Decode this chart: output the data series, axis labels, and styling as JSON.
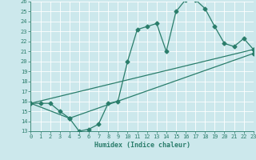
{
  "title": "",
  "xlabel": "Humidex (Indice chaleur)",
  "xlim": [
    0,
    23
  ],
  "ylim": [
    13,
    26
  ],
  "xticks": [
    0,
    1,
    2,
    3,
    4,
    5,
    6,
    7,
    8,
    9,
    10,
    11,
    12,
    13,
    14,
    15,
    16,
    17,
    18,
    19,
    20,
    21,
    22,
    23
  ],
  "yticks": [
    13,
    14,
    15,
    16,
    17,
    18,
    19,
    20,
    21,
    22,
    23,
    24,
    25,
    26
  ],
  "line_color": "#2a7d6b",
  "bg_color": "#cce8ec",
  "grid_color": "#ffffff",
  "line_main_x": [
    0,
    1,
    2,
    3,
    4,
    5,
    6,
    7,
    8,
    9,
    10,
    11,
    12,
    13,
    14,
    15,
    16,
    17,
    18,
    19,
    20,
    21,
    22,
    23
  ],
  "line_main_y": [
    15.8,
    15.8,
    15.8,
    15.0,
    14.3,
    13.0,
    13.2,
    13.7,
    15.8,
    16.0,
    20.0,
    23.2,
    23.5,
    23.8,
    21.0,
    25.0,
    26.2,
    26.2,
    25.3,
    23.5,
    21.8,
    21.5,
    22.3,
    21.2
  ],
  "line2_x": [
    0,
    23
  ],
  "line2_y": [
    15.8,
    21.2
  ],
  "line3_x": [
    0,
    4,
    23
  ],
  "line3_y": [
    15.8,
    14.3,
    20.8
  ],
  "markersize": 2.5,
  "linewidth": 0.9
}
